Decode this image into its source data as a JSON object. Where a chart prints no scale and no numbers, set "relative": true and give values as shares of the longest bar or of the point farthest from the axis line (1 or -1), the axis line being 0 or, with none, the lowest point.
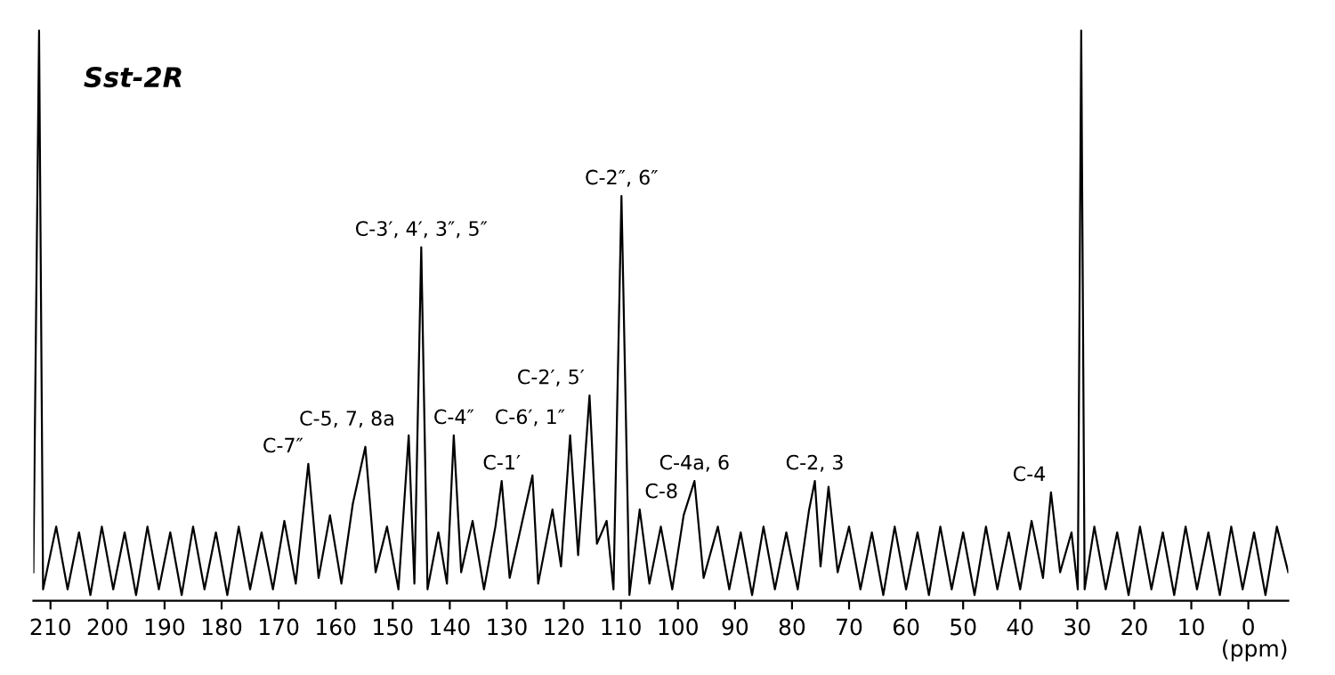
{
  "chart_data": {
    "type": "line",
    "title": "Sst-2R",
    "xlabel": "(ppm)",
    "relative": true,
    "xlim": [
      213,
      -7
    ],
    "xticks": [
      210,
      200,
      190,
      180,
      170,
      160,
      150,
      140,
      130,
      120,
      110,
      100,
      90,
      80,
      70,
      60,
      50,
      40,
      30,
      20,
      10,
      0
    ],
    "grid": false,
    "marker": "none",
    "line_style": "solid",
    "series": [
      {
        "color": "#000000",
        "x": [
          213,
          212,
          211.3,
          209,
          207,
          205,
          203,
          201,
          199,
          197,
          195,
          193,
          191,
          189,
          187,
          185,
          183,
          181,
          179,
          177,
          175,
          173,
          171,
          169,
          167,
          164.8,
          163,
          161,
          159,
          157,
          154.8,
          153,
          151,
          149,
          147.2,
          146.2,
          145,
          143.9,
          142,
          140.5,
          139.3,
          138,
          136,
          134,
          132,
          130.9,
          129.5,
          127.5,
          125.5,
          124.5,
          122,
          120.5,
          118.9,
          117.5,
          115.5,
          114.2,
          112.5,
          111.3,
          109.9,
          108.5,
          106.7,
          105,
          103,
          101,
          99,
          97.1,
          95.5,
          93,
          91,
          89,
          87,
          85,
          83,
          81,
          79,
          77,
          76,
          75,
          73.6,
          72,
          70,
          68,
          66,
          64,
          62,
          60,
          58,
          56,
          54,
          52,
          50,
          48,
          46,
          44,
          42,
          40,
          38,
          36,
          34.6,
          33,
          31,
          29.9,
          29.3,
          28.7,
          27,
          25,
          23,
          21,
          19,
          17,
          15,
          13,
          11,
          9,
          7,
          5,
          3,
          1,
          -1,
          -3,
          -5,
          -7
        ],
        "values": [
          0.05,
          1.0,
          0.02,
          0.13,
          0.02,
          0.12,
          0.01,
          0.13,
          0.02,
          0.12,
          0.01,
          0.13,
          0.02,
          0.12,
          0.01,
          0.13,
          0.02,
          0.12,
          0.01,
          0.13,
          0.02,
          0.12,
          0.02,
          0.14,
          0.03,
          0.24,
          0.04,
          0.15,
          0.03,
          0.17,
          0.27,
          0.05,
          0.13,
          0.02,
          0.29,
          0.03,
          0.62,
          0.02,
          0.12,
          0.03,
          0.29,
          0.05,
          0.14,
          0.02,
          0.13,
          0.21,
          0.04,
          0.13,
          0.22,
          0.03,
          0.16,
          0.06,
          0.29,
          0.08,
          0.36,
          0.1,
          0.14,
          0.02,
          0.71,
          0.01,
          0.16,
          0.03,
          0.13,
          0.02,
          0.15,
          0.21,
          0.04,
          0.13,
          0.02,
          0.12,
          0.01,
          0.13,
          0.02,
          0.12,
          0.02,
          0.16,
          0.21,
          0.06,
          0.2,
          0.05,
          0.13,
          0.02,
          0.12,
          0.01,
          0.13,
          0.02,
          0.12,
          0.01,
          0.13,
          0.02,
          0.12,
          0.01,
          0.13,
          0.02,
          0.12,
          0.02,
          0.14,
          0.04,
          0.19,
          0.05,
          0.12,
          0.02,
          1.0,
          0.02,
          0.13,
          0.02,
          0.12,
          0.01,
          0.13,
          0.02,
          0.12,
          0.01,
          0.13,
          0.02,
          0.12,
          0.01,
          0.13,
          0.02,
          0.12,
          0.01,
          0.13,
          0.05
        ]
      }
    ],
    "annotations": [
      {
        "text": "C-7″",
        "x": 164.8,
        "y": 0.24
      },
      {
        "text": "C-5, 7, 8a",
        "x": 154.8,
        "y": 0.27
      },
      {
        "text": "C-3′, 4′, 3″, 5″",
        "x": 145,
        "y": 0.62
      },
      {
        "text": "C-4″",
        "x": 139.3,
        "y": 0.29
      },
      {
        "text": "C-1′",
        "x": 130.9,
        "y": 0.21
      },
      {
        "text": "C-6′, 1″",
        "x": 118.9,
        "y": 0.29
      },
      {
        "text": "C-2′, 5′",
        "x": 115.5,
        "y": 0.36
      },
      {
        "text": "C-2″, 6″",
        "x": 109.9,
        "y": 0.71
      },
      {
        "text": "C-8",
        "x": 106.7,
        "y": 0.16
      },
      {
        "text": "C-4a, 6",
        "x": 97.1,
        "y": 0.21
      },
      {
        "text": "C-2, 3",
        "x": 76,
        "y": 0.21
      },
      {
        "text": "C-4",
        "x": 34.6,
        "y": 0.19
      }
    ]
  }
}
